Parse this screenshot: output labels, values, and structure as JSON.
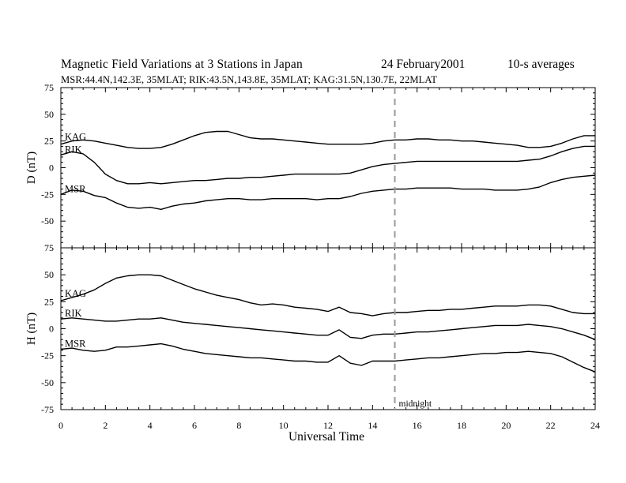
{
  "header": {
    "title": "Magnetic Field Variations at 3 Stations in Japan",
    "date": "24 February2001",
    "averaging": "10-s averages",
    "stations": "MSR:44.4N,142.3E, 35MLAT;  RIK:43.5N,143.8E, 35MLAT;  KAG:31.5N,130.7E, 22MLAT"
  },
  "annotation": {
    "label": "midnight",
    "x": 15
  },
  "chart_data": [
    {
      "type": "line",
      "panel": "D",
      "ylabel": "D (nT)",
      "xlabel": "Universal Time",
      "xlim": [
        0,
        24
      ],
      "ylim": [
        -75,
        75
      ],
      "xticks": [
        0,
        2,
        4,
        6,
        8,
        10,
        12,
        14,
        16,
        18,
        20,
        22,
        24
      ],
      "yticks": [
        -75,
        -50,
        -25,
        0,
        25,
        50,
        75
      ],
      "series": [
        {
          "name": "KAG",
          "x": [
            0,
            0.5,
            1,
            1.5,
            2,
            2.5,
            3,
            3.5,
            4,
            4.5,
            5,
            5.5,
            6,
            6.5,
            7,
            7.5,
            8,
            8.5,
            9,
            9.5,
            10,
            10.5,
            11,
            11.5,
            12,
            12.5,
            13,
            13.5,
            14,
            14.5,
            15,
            15.5,
            16,
            16.5,
            17,
            17.5,
            18,
            18.5,
            19,
            19.5,
            20,
            20.5,
            21,
            21.5,
            22,
            22.5,
            23,
            23.5,
            24
          ],
          "values": [
            22,
            25,
            26,
            25,
            23,
            21,
            19,
            18,
            18,
            19,
            22,
            26,
            30,
            33,
            34,
            34,
            31,
            28,
            27,
            27,
            26,
            25,
            24,
            23,
            22,
            22,
            22,
            22,
            23,
            25,
            26,
            26,
            27,
            27,
            26,
            26,
            25,
            25,
            24,
            23,
            22,
            21,
            19,
            19,
            20,
            23,
            27,
            30,
            30
          ]
        },
        {
          "name": "RIK",
          "x": [
            0,
            0.5,
            1,
            1.5,
            2,
            2.5,
            3,
            3.5,
            4,
            4.5,
            5,
            5.5,
            6,
            6.5,
            7,
            7.5,
            8,
            8.5,
            9,
            9.5,
            10,
            10.5,
            11,
            11.5,
            12,
            12.5,
            13,
            13.5,
            14,
            14.5,
            15,
            15.5,
            16,
            16.5,
            17,
            17.5,
            18,
            18.5,
            19,
            19.5,
            20,
            20.5,
            21,
            21.5,
            22,
            22.5,
            23,
            23.5,
            24
          ],
          "values": [
            12,
            15,
            13,
            5,
            -6,
            -12,
            -15,
            -15,
            -14,
            -15,
            -14,
            -13,
            -12,
            -12,
            -11,
            -10,
            -10,
            -9,
            -9,
            -8,
            -7,
            -6,
            -6,
            -6,
            -6,
            -6,
            -5,
            -2,
            1,
            3,
            4,
            5,
            6,
            6,
            6,
            6,
            6,
            6,
            6,
            6,
            6,
            6,
            7,
            8,
            11,
            15,
            18,
            20,
            20
          ]
        },
        {
          "name": "MSR",
          "x": [
            0,
            0.5,
            1,
            1.5,
            2,
            2.5,
            3,
            3.5,
            4,
            4.5,
            5,
            5.5,
            6,
            6.5,
            7,
            7.5,
            8,
            8.5,
            9,
            9.5,
            10,
            10.5,
            11,
            11.5,
            12,
            12.5,
            13,
            13.5,
            14,
            14.5,
            15,
            15.5,
            16,
            16.5,
            17,
            17.5,
            18,
            18.5,
            19,
            19.5,
            20,
            20.5,
            21,
            21.5,
            22,
            22.5,
            23,
            23.5,
            24
          ],
          "values": [
            -25,
            -21,
            -22,
            -26,
            -28,
            -33,
            -37,
            -38,
            -37,
            -39,
            -36,
            -34,
            -33,
            -31,
            -30,
            -29,
            -29,
            -30,
            -30,
            -29,
            -29,
            -29,
            -29,
            -30,
            -29,
            -29,
            -27,
            -24,
            -22,
            -21,
            -20,
            -20,
            -19,
            -19,
            -19,
            -19,
            -20,
            -20,
            -20,
            -21,
            -21,
            -21,
            -20,
            -18,
            -14,
            -11,
            -9,
            -8,
            -7
          ]
        }
      ]
    },
    {
      "type": "line",
      "panel": "H",
      "ylabel": "H (nT)",
      "xlabel": "Universal Time",
      "xlim": [
        0,
        24
      ],
      "ylim": [
        -75,
        75
      ],
      "xticks": [
        0,
        2,
        4,
        6,
        8,
        10,
        12,
        14,
        16,
        18,
        20,
        22,
        24
      ],
      "yticks": [
        -75,
        -50,
        -25,
        0,
        25,
        50,
        75
      ],
      "series": [
        {
          "name": "KAG",
          "x": [
            0,
            0.5,
            1,
            1.5,
            2,
            2.5,
            3,
            3.5,
            4,
            4.5,
            5,
            5.5,
            6,
            6.5,
            7,
            7.5,
            8,
            8.5,
            9,
            9.5,
            10,
            10.5,
            11,
            11.5,
            12,
            12.5,
            13,
            13.5,
            14,
            14.5,
            15,
            15.5,
            16,
            16.5,
            17,
            17.5,
            18,
            18.5,
            19,
            19.5,
            20,
            20.5,
            21,
            21.5,
            22,
            22.5,
            23,
            23.5,
            24
          ],
          "values": [
            26,
            29,
            32,
            36,
            42,
            47,
            49,
            50,
            50,
            49,
            45,
            41,
            37,
            34,
            31,
            29,
            27,
            24,
            22,
            23,
            22,
            20,
            19,
            18,
            16,
            20,
            15,
            14,
            12,
            14,
            15,
            15,
            16,
            17,
            17,
            18,
            18,
            19,
            20,
            21,
            21,
            21,
            22,
            22,
            21,
            18,
            15,
            14,
            14
          ]
        },
        {
          "name": "RIK",
          "x": [
            0,
            0.5,
            1,
            1.5,
            2,
            2.5,
            3,
            3.5,
            4,
            4.5,
            5,
            5.5,
            6,
            6.5,
            7,
            7.5,
            8,
            8.5,
            9,
            9.5,
            10,
            10.5,
            11,
            11.5,
            12,
            12.5,
            13,
            13.5,
            14,
            14.5,
            15,
            15.5,
            16,
            16.5,
            17,
            17.5,
            18,
            18.5,
            19,
            19.5,
            20,
            20.5,
            21,
            21.5,
            22,
            22.5,
            23,
            23.5,
            24
          ],
          "values": [
            9,
            10,
            9,
            8,
            7,
            7,
            8,
            9,
            9,
            10,
            8,
            6,
            5,
            4,
            3,
            2,
            1,
            0,
            -1,
            -2,
            -3,
            -4,
            -5,
            -6,
            -6,
            -1,
            -8,
            -9,
            -6,
            -5,
            -5,
            -4,
            -3,
            -3,
            -2,
            -1,
            0,
            1,
            2,
            3,
            3,
            3,
            4,
            3,
            2,
            0,
            -3,
            -6,
            -10
          ]
        },
        {
          "name": "MSR",
          "x": [
            0,
            0.5,
            1,
            1.5,
            2,
            2.5,
            3,
            3.5,
            4,
            4.5,
            5,
            5.5,
            6,
            6.5,
            7,
            7.5,
            8,
            8.5,
            9,
            9.5,
            10,
            10.5,
            11,
            11.5,
            12,
            12.5,
            13,
            13.5,
            14,
            14.5,
            15,
            15.5,
            16,
            16.5,
            17,
            17.5,
            18,
            18.5,
            19,
            19.5,
            20,
            20.5,
            21,
            21.5,
            22,
            22.5,
            23,
            23.5,
            24
          ],
          "values": [
            -19,
            -18,
            -20,
            -21,
            -20,
            -17,
            -17,
            -16,
            -15,
            -14,
            -16,
            -19,
            -21,
            -23,
            -24,
            -25,
            -26,
            -27,
            -27,
            -28,
            -29,
            -30,
            -30,
            -31,
            -31,
            -25,
            -32,
            -34,
            -30,
            -30,
            -30,
            -29,
            -28,
            -27,
            -27,
            -26,
            -25,
            -24,
            -23,
            -23,
            -22,
            -22,
            -21,
            -22,
            -23,
            -26,
            -31,
            -36,
            -40
          ]
        }
      ]
    }
  ]
}
